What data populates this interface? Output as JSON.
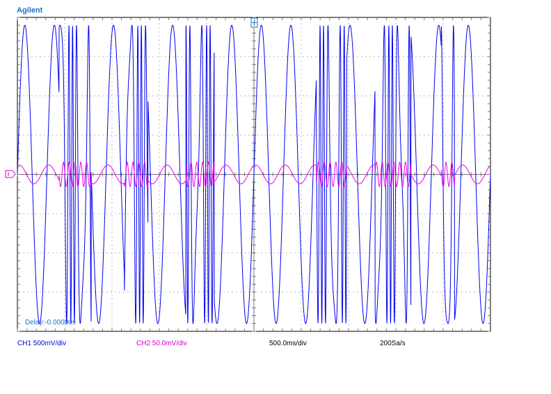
{
  "brand": "Agilent",
  "delay_readout": "Delay:-0.00000s",
  "channels": {
    "ch1": {
      "label": "CH1 500mV/div",
      "color": "#0000ee"
    },
    "ch2": {
      "label": "CH2 50.0mV/div",
      "color": "#ee00ee"
    }
  },
  "timebase": "500.0ms/div",
  "sample_rate": "200Sa/s",
  "colors": {
    "grid": "#777777",
    "frame": "#000000",
    "trigger_marker": "#1a6fc4"
  },
  "chart_data": {
    "type": "line",
    "grid": true,
    "divisions": {
      "x": 10,
      "y": 8
    },
    "series": [
      {
        "name": "CH1",
        "description_units": "volts",
        "x_range_s": [
          -2.5,
          2.5
        ],
        "y_range": [
          -2.0,
          2.0
        ],
        "amplitude": 1.9,
        "base_frequency_hz": 3.2,
        "bursts": [
          [
            -2.06,
            -1.72
          ],
          [
            -1.37,
            -1.12
          ],
          [
            -0.72,
            -0.42
          ],
          [
            0.66,
            0.98
          ],
          [
            1.28,
            1.66
          ],
          [
            1.98,
            2.12
          ]
        ]
      },
      {
        "name": "CH2",
        "description_units": "volts",
        "x_range_s": [
          -2.5,
          2.5
        ],
        "y_range": [
          -0.2,
          0.2
        ],
        "amplitude": 0.012,
        "base_frequency_hz": 3.2
      }
    ]
  }
}
